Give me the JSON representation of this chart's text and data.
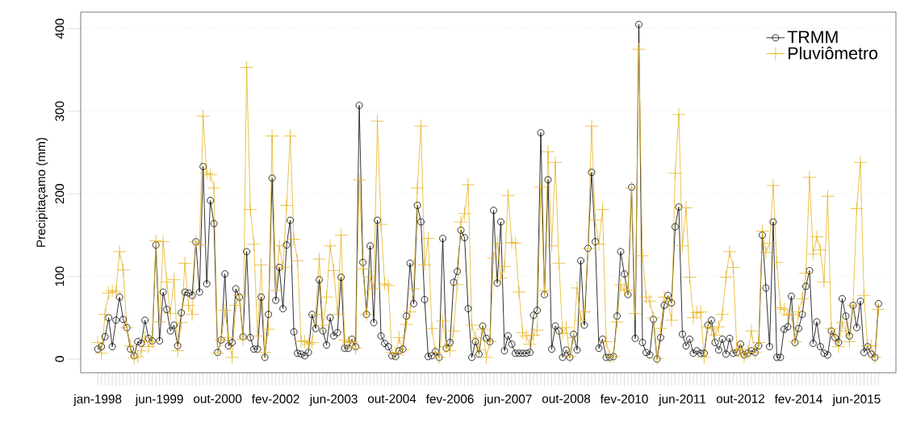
{
  "chart_data": {
    "type": "line",
    "ylabel": "Precipitaçamo (mm)",
    "categories": [
      "jan-1998",
      null,
      null,
      null,
      null,
      null,
      null,
      null,
      null,
      null,
      null,
      null,
      null,
      null,
      null,
      null,
      null,
      "jun-1999",
      null,
      null,
      null,
      null,
      null,
      null,
      null,
      null,
      null,
      null,
      null,
      null,
      null,
      null,
      null,
      "out-2000",
      null,
      null,
      null,
      null,
      null,
      null,
      null,
      null,
      null,
      null,
      null,
      null,
      null,
      null,
      null,
      "fev-2002",
      null,
      null,
      null,
      null,
      null,
      null,
      null,
      null,
      null,
      null,
      null,
      null,
      null,
      null,
      null,
      "jun-2003",
      null,
      null,
      null,
      null,
      null,
      null,
      null,
      null,
      null,
      null,
      null,
      null,
      null,
      null,
      null,
      "out-2004",
      null,
      null,
      null,
      null,
      null,
      null,
      null,
      null,
      null,
      null,
      null,
      null,
      null,
      null,
      null,
      "fev-2006",
      null,
      null,
      null,
      null,
      null,
      null,
      null,
      null,
      null,
      null,
      null,
      null,
      null,
      null,
      null,
      "jun-2007",
      null,
      null,
      null,
      null,
      null,
      null,
      null,
      null,
      null,
      null,
      null,
      null,
      null,
      null,
      null,
      "out-2008",
      null,
      null,
      null,
      null,
      null,
      null,
      null,
      null,
      null,
      null,
      null,
      null,
      null,
      null,
      null,
      "fev-2010",
      null,
      null,
      null,
      null,
      null,
      null,
      null,
      null,
      null,
      null,
      null,
      null,
      null,
      null,
      null,
      "jun-2011",
      null,
      null,
      null,
      null,
      null,
      null,
      null,
      null,
      null,
      null,
      null,
      null,
      null,
      null,
      null,
      "out-2012",
      null,
      null,
      null,
      null,
      null,
      null,
      null,
      null,
      null,
      null,
      null,
      null,
      null,
      null,
      null,
      "fev-2014",
      null,
      null,
      null,
      null,
      null,
      null,
      null,
      null,
      null,
      null,
      null,
      null,
      null,
      null,
      null,
      "jun-2015",
      null,
      null,
      null,
      null,
      null,
      null
    ],
    "series": [
      {
        "name": "TRMM",
        "color": "#000000",
        "marker": "circle",
        "line_style": "solid",
        "values": [
          12,
          15,
          27,
          50,
          15,
          47,
          75,
          48,
          38,
          12,
          4,
          21,
          19,
          47,
          25,
          22,
          138,
          22,
          81,
          60,
          34,
          41,
          16,
          56,
          81,
          80,
          77,
          142,
          81,
          233,
          91,
          192,
          164,
          8,
          23,
          103,
          16,
          20,
          85,
          75,
          27,
          130,
          26,
          12,
          12,
          75,
          2,
          54,
          219,
          71,
          111,
          61,
          138,
          168,
          33,
          7,
          6,
          4,
          8,
          54,
          37,
          96,
          34,
          17,
          50,
          28,
          32,
          99,
          13,
          13,
          24,
          15,
          307,
          117,
          54,
          137,
          44,
          168,
          28,
          19,
          15,
          4,
          3,
          10,
          12,
          52,
          116,
          67,
          186,
          166,
          72,
          3,
          4,
          9,
          2,
          146,
          13,
          20,
          93,
          106,
          156,
          147,
          61,
          2,
          21,
          6,
          40,
          25,
          21,
          180,
          92,
          166,
          10,
          28,
          18,
          7,
          7,
          7,
          7,
          8,
          53,
          59,
          274,
          78,
          217,
          12,
          40,
          34,
          2,
          11,
          2,
          30,
          11,
          119,
          41,
          134,
          226,
          142,
          13,
          24,
          2,
          2,
          3,
          52,
          130,
          103,
          78,
          208,
          25,
          405,
          20,
          8,
          5,
          48,
          0,
          26,
          65,
          77,
          68,
          160,
          184,
          30,
          16,
          24,
          7,
          10,
          7,
          7,
          41,
          47,
          20,
          11,
          24,
          6,
          25,
          7,
          8,
          18,
          5,
          7,
          10,
          8,
          16,
          150,
          86,
          15,
          166,
          2,
          2,
          36,
          39,
          76,
          20,
          37,
          54,
          88,
          107,
          19,
          45,
          15,
          7,
          5,
          34,
          26,
          20,
          73,
          52,
          28,
          65,
          38,
          70,
          8,
          15,
          6,
          2,
          67
        ]
      },
      {
        "name": "Pluviômetro",
        "color": "#e6b422",
        "marker": "cross",
        "line_style": "solid",
        "values": [
          20,
          7,
          54,
          80,
          83,
          81,
          130,
          108,
          38,
          16,
          1,
          3,
          10,
          26,
          15,
          21,
          143,
          45,
          142,
          93,
          55,
          96,
          10,
          44,
          116,
          65,
          54,
          142,
          138,
          294,
          225,
          223,
          207,
          7,
          23,
          59,
          26,
          2,
          65,
          77,
          24,
          353,
          181,
          139,
          28,
          114,
          8,
          36,
          270,
          83,
          137,
          111,
          186,
          270,
          145,
          119,
          22,
          21,
          18,
          20,
          54,
          121,
          41,
          75,
          137,
          107,
          54,
          150,
          23,
          20,
          21,
          13,
          217,
          109,
          54,
          99,
          85,
          288,
          163,
          91,
          89,
          8,
          7,
          26,
          11,
          42,
          57,
          85,
          207,
          282,
          114,
          146,
          37,
          8,
          2,
          46,
          15,
          10,
          34,
          90,
          166,
          176,
          211,
          41,
          26,
          11,
          36,
          2,
          21,
          122,
          140,
          98,
          112,
          198,
          141,
          140,
          81,
          32,
          28,
          18,
          29,
          35,
          208,
          83,
          251,
          137,
          238,
          116,
          31,
          38,
          3,
          26,
          86,
          47,
          57,
          134,
          282,
          168,
          139,
          181,
          21,
          3,
          3,
          45,
          90,
          84,
          83,
          207,
          55,
          375,
          125,
          75,
          70,
          50,
          1,
          37,
          75,
          70,
          47,
          225,
          296,
          137,
          183,
          99,
          50,
          56,
          57,
          2,
          39,
          37,
          29,
          39,
          54,
          99,
          130,
          111,
          11,
          12,
          3,
          8,
          34,
          8,
          20,
          155,
          129,
          140,
          210,
          117,
          62,
          60,
          53,
          54,
          21,
          57,
          73,
          104,
          220,
          127,
          148,
          132,
          93,
          197,
          37,
          28,
          15,
          44,
          34,
          21,
          65,
          182,
          238,
          77,
          16,
          16,
          2,
          60
        ]
      }
    ],
    "ylim": [
      -16.6,
      420
    ],
    "yticks": [
      0,
      100,
      200,
      300,
      400
    ],
    "grid": "y",
    "legend": "top right"
  }
}
